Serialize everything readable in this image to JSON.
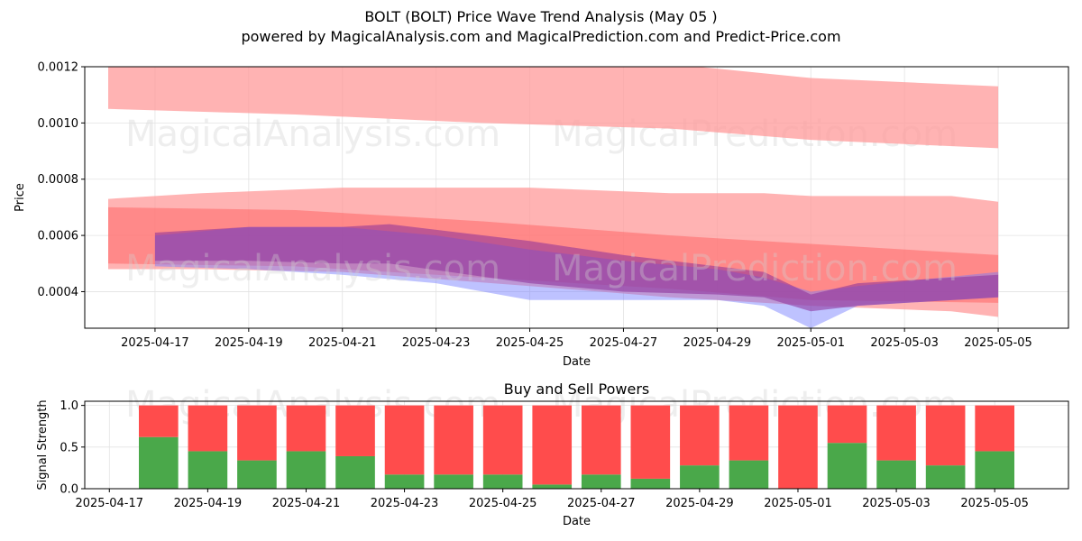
{
  "title": "BOLT (BOLT) Price Wave Trend Analysis (May 05 )",
  "subtitle": "powered by MagicalAnalysis.com and MagicalPrediction.com and Predict-Price.com",
  "watermarks": [
    "MagicalAnalysis.com",
    "MagicalPrediction.com"
  ],
  "colors": {
    "upper_band": "#ff9999",
    "mid_band": "#ff6666",
    "blue_wave": "#6f78ff",
    "purple_wave": "#8b2e99",
    "buy": "#4aa84a",
    "sell": "#ff4c4c"
  },
  "chart_data": [
    {
      "type": "area",
      "title": "",
      "xlabel": "Date",
      "ylabel": "Price",
      "ylim": [
        0.00027,
        0.0012
      ],
      "x_range": [
        "2025-04-15T12:00",
        "2025-05-06T12:00"
      ],
      "xticks": [
        "2025-04-17",
        "2025-04-19",
        "2025-04-21",
        "2025-04-23",
        "2025-04-25",
        "2025-04-27",
        "2025-04-29",
        "2025-05-01",
        "2025-05-03",
        "2025-05-05"
      ],
      "yticks": [
        "0.0004",
        "0.0006",
        "0.0008",
        "0.0010",
        "0.0012"
      ],
      "grid": true,
      "bands": [
        {
          "kind": "upper",
          "x": [
            "2025-04-16",
            "2025-04-20",
            "2025-04-24",
            "2025-04-28",
            "2025-05-01",
            "2025-05-05"
          ],
          "upper": [
            0.00122,
            0.00122,
            0.00122,
            0.00121,
            0.00116,
            0.00113
          ],
          "lower": [
            0.00105,
            0.00103,
            0.001,
            0.00098,
            0.00094,
            0.00091
          ]
        },
        {
          "kind": "wide",
          "x": [
            "2025-04-16",
            "2025-04-18",
            "2025-04-21",
            "2025-04-25",
            "2025-04-28",
            "2025-04-30",
            "2025-05-01",
            "2025-05-04",
            "2025-05-05"
          ],
          "upper": [
            0.00073,
            0.00075,
            0.00077,
            0.00077,
            0.00075,
            0.00075,
            0.00074,
            0.00074,
            0.00072
          ],
          "lower": [
            0.00048,
            0.00048,
            0.00047,
            0.00042,
            0.00038,
            0.00036,
            0.00035,
            0.00033,
            0.00031
          ]
        },
        {
          "kind": "mid",
          "x": [
            "2025-04-16",
            "2025-04-20",
            "2025-04-24",
            "2025-04-28",
            "2025-05-01",
            "2025-05-05"
          ],
          "upper": [
            0.0007,
            0.00069,
            0.00065,
            0.0006,
            0.00057,
            0.00053
          ],
          "lower": [
            0.0005,
            0.00049,
            0.00045,
            0.00041,
            0.00037,
            0.00036
          ]
        },
        {
          "kind": "blue",
          "x": [
            "2025-04-17",
            "2025-04-19",
            "2025-04-21",
            "2025-04-23",
            "2025-04-25",
            "2025-04-27",
            "2025-04-29",
            "2025-04-30",
            "2025-05-01",
            "2025-05-02",
            "2025-05-05"
          ],
          "upper": [
            0.0006,
            0.00063,
            0.00063,
            0.0006,
            0.00055,
            0.00051,
            0.00048,
            0.00045,
            0.0004,
            0.00042,
            0.00047
          ],
          "lower": [
            0.00049,
            0.00048,
            0.00046,
            0.00043,
            0.00037,
            0.00037,
            0.00037,
            0.00035,
            0.00027,
            0.00035,
            0.00038
          ]
        },
        {
          "kind": "purple",
          "x": [
            "2025-04-17",
            "2025-04-19",
            "2025-04-21",
            "2025-04-22",
            "2025-04-25",
            "2025-04-27",
            "2025-04-29",
            "2025-04-30",
            "2025-05-01",
            "2025-05-02",
            "2025-05-05"
          ],
          "upper": [
            0.00061,
            0.00063,
            0.00063,
            0.00064,
            0.00058,
            0.00053,
            0.00049,
            0.00047,
            0.00039,
            0.00043,
            0.00046
          ],
          "lower": [
            0.00051,
            0.00051,
            0.0005,
            0.0005,
            0.00043,
            0.0004,
            0.00039,
            0.00038,
            0.00033,
            0.00035,
            0.00038
          ]
        }
      ]
    },
    {
      "type": "bar",
      "title": "Buy and Sell Powers",
      "xlabel": "Date",
      "ylabel": "Signal Strength",
      "ylim": [
        0,
        1.05
      ],
      "x_range": [
        "2025-04-16T12:00",
        "2025-05-06T12:00"
      ],
      "xticks": [
        "2025-04-17",
        "2025-04-19",
        "2025-04-21",
        "2025-04-23",
        "2025-04-25",
        "2025-04-27",
        "2025-04-29",
        "2025-05-01",
        "2025-05-03",
        "2025-05-05"
      ],
      "yticks": [
        "0.0",
        "0.5",
        "1.0"
      ],
      "grid": true,
      "categories": [
        "2025-04-18",
        "2025-04-19",
        "2025-04-20",
        "2025-04-21",
        "2025-04-22",
        "2025-04-23",
        "2025-04-24",
        "2025-04-25",
        "2025-04-26",
        "2025-04-27",
        "2025-04-28",
        "2025-04-29",
        "2025-04-30",
        "2025-05-01",
        "2025-05-02",
        "2025-05-03",
        "2025-05-04",
        "2025-05-05"
      ],
      "series": [
        {
          "name": "",
          "values": [
            0.62,
            0.45,
            0.34,
            0.45,
            0.39,
            0.17,
            0.17,
            0.17,
            0.05,
            0.17,
            0.12,
            0.28,
            0.34,
            0.0,
            0.55,
            0.34,
            0.28,
            0.45
          ]
        },
        {
          "name": "",
          "values": [
            0.38,
            0.55,
            0.66,
            0.55,
            0.61,
            0.83,
            0.83,
            0.83,
            0.95,
            0.83,
            0.88,
            0.72,
            0.66,
            1.0,
            0.45,
            0.66,
            0.72,
            0.55
          ]
        }
      ]
    }
  ]
}
